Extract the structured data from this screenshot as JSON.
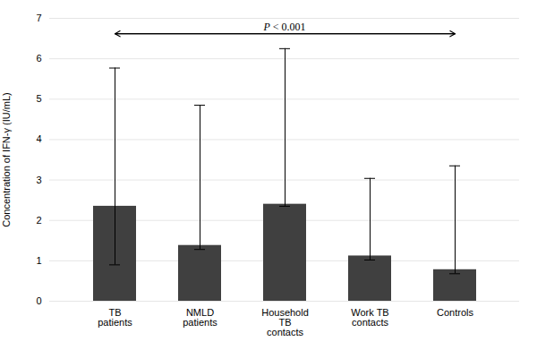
{
  "chart_data": {
    "type": "bar",
    "categories": [
      "TB\npatients",
      "NMLD\npatients",
      "Household\nTB\ncontacts",
      "Work TB\ncontacts",
      "Controls"
    ],
    "values": [
      2.35,
      1.38,
      2.4,
      1.12,
      0.78
    ],
    "error_upper": [
      3.42,
      3.47,
      3.85,
      1.92,
      2.57
    ],
    "error_lower": [
      1.45,
      0.1,
      0.05,
      0.1,
      0.1
    ],
    "color": "#404040",
    "ylabel": "Concentration of IFN-γ (IU/mL)",
    "ylim": [
      0,
      7
    ],
    "yticks": [
      0,
      1,
      2,
      3,
      4,
      5,
      6,
      7
    ],
    "grid": true,
    "annotations": [
      {
        "text": "P < 0.001",
        "y": 6.62,
        "from": "TB\npatients",
        "to": "Controls"
      }
    ]
  }
}
